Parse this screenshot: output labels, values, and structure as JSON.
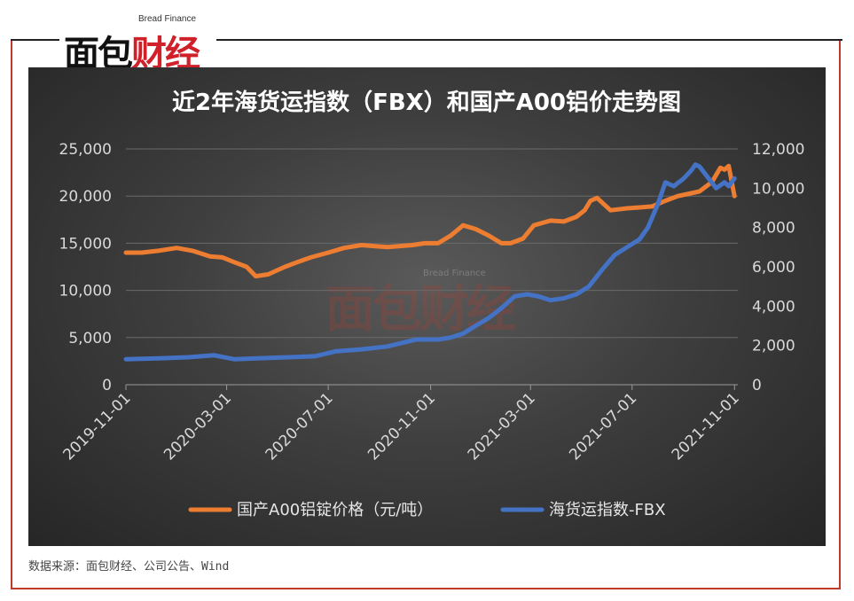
{
  "brand": {
    "name_en": "Bread Finance",
    "name_cn_black": "面包",
    "name_cn_red": "财经"
  },
  "source_note": "数据来源：面包财经、公司公告、Wind",
  "colors": {
    "aluminum": "#ED7D31",
    "fbx": "#4472C4",
    "frame": "#c0392b"
  },
  "chart_data": {
    "type": "line",
    "title": "近2年海货运指数（FBX）和国产A00铝价走势图",
    "x_tick_labels": [
      "2019-11-01",
      "2020-03-01",
      "2020-07-01",
      "2020-11-01",
      "2021-03-01",
      "2021-07-01",
      "2021-11-01"
    ],
    "xlim": [
      "2019-11-01",
      "2021-11-05"
    ],
    "y_left": {
      "ylim": [
        0,
        25000
      ],
      "ticks": [
        "0",
        "5,000",
        "10,000",
        "15,000",
        "20,000",
        "25,000"
      ]
    },
    "y_right": {
      "ylim": [
        0,
        12000
      ],
      "ticks": [
        "0",
        "2,000",
        "4,000",
        "6,000",
        "8,000",
        "10,000",
        "12,000"
      ]
    },
    "legend_position": "bottom",
    "series": [
      {
        "name": "国产A00铝锭价格（元/吨）",
        "axis": "left",
        "x": [
          "2019-11-01",
          "2019-11-20",
          "2019-12-10",
          "2020-01-01",
          "2020-01-20",
          "2020-02-10",
          "2020-02-25",
          "2020-03-10",
          "2020-03-25",
          "2020-04-05",
          "2020-04-20",
          "2020-05-10",
          "2020-05-25",
          "2020-06-10",
          "2020-07-01",
          "2020-07-20",
          "2020-08-10",
          "2020-08-25",
          "2020-09-10",
          "2020-09-25",
          "2020-10-10",
          "2020-10-25",
          "2020-11-10",
          "2020-11-25",
          "2020-12-10",
          "2020-12-25",
          "2021-01-10",
          "2021-01-25",
          "2021-02-05",
          "2021-02-20",
          "2021-03-05",
          "2021-03-25",
          "2021-04-10",
          "2021-04-25",
          "2021-05-05",
          "2021-05-12",
          "2021-05-20",
          "2021-06-05",
          "2021-06-25",
          "2021-07-10",
          "2021-07-25",
          "2021-08-10",
          "2021-08-25",
          "2021-09-10",
          "2021-09-20",
          "2021-10-05",
          "2021-10-15",
          "2021-10-20",
          "2021-10-25",
          "2021-11-01"
        ],
        "values": [
          14000,
          14000,
          14200,
          14500,
          14200,
          13600,
          13500,
          13000,
          12500,
          11500,
          11700,
          12500,
          13000,
          13500,
          14000,
          14500,
          14800,
          14700,
          14600,
          14700,
          14800,
          15000,
          15000,
          15800,
          16900,
          16500,
          15800,
          15000,
          15000,
          15500,
          16900,
          17400,
          17300,
          17800,
          18500,
          19500,
          19800,
          18500,
          18700,
          18800,
          18900,
          19500,
          20000,
          20300,
          20500,
          21500,
          23000,
          22800,
          23200,
          20000
        ]
      },
      {
        "name": "海货运指数-FBX",
        "axis": "right",
        "x": [
          "2019-11-01",
          "2019-12-15",
          "2020-01-15",
          "2020-02-15",
          "2020-03-10",
          "2020-04-10",
          "2020-05-15",
          "2020-06-15",
          "2020-07-10",
          "2020-08-10",
          "2020-09-10",
          "2020-10-15",
          "2020-11-10",
          "2020-11-25",
          "2020-12-10",
          "2020-12-25",
          "2021-01-10",
          "2021-01-25",
          "2021-02-10",
          "2021-02-25",
          "2021-03-10",
          "2021-03-25",
          "2021-04-10",
          "2021-04-25",
          "2021-05-10",
          "2021-05-25",
          "2021-06-10",
          "2021-06-25",
          "2021-07-10",
          "2021-07-20",
          "2021-08-01",
          "2021-08-10",
          "2021-08-20",
          "2021-09-01",
          "2021-09-10",
          "2021-09-15",
          "2021-09-20",
          "2021-10-01",
          "2021-10-10",
          "2021-10-20",
          "2021-10-25",
          "2021-11-01"
        ],
        "values": [
          1300,
          1350,
          1400,
          1500,
          1300,
          1350,
          1400,
          1450,
          1700,
          1800,
          1950,
          2300,
          2300,
          2400,
          2600,
          3000,
          3400,
          3900,
          4500,
          4600,
          4500,
          4300,
          4400,
          4600,
          5000,
          5800,
          6600,
          7000,
          7400,
          8000,
          9200,
          10300,
          10100,
          10500,
          10900,
          11200,
          11100,
          10500,
          10000,
          10300,
          10100,
          10500
        ]
      }
    ]
  }
}
